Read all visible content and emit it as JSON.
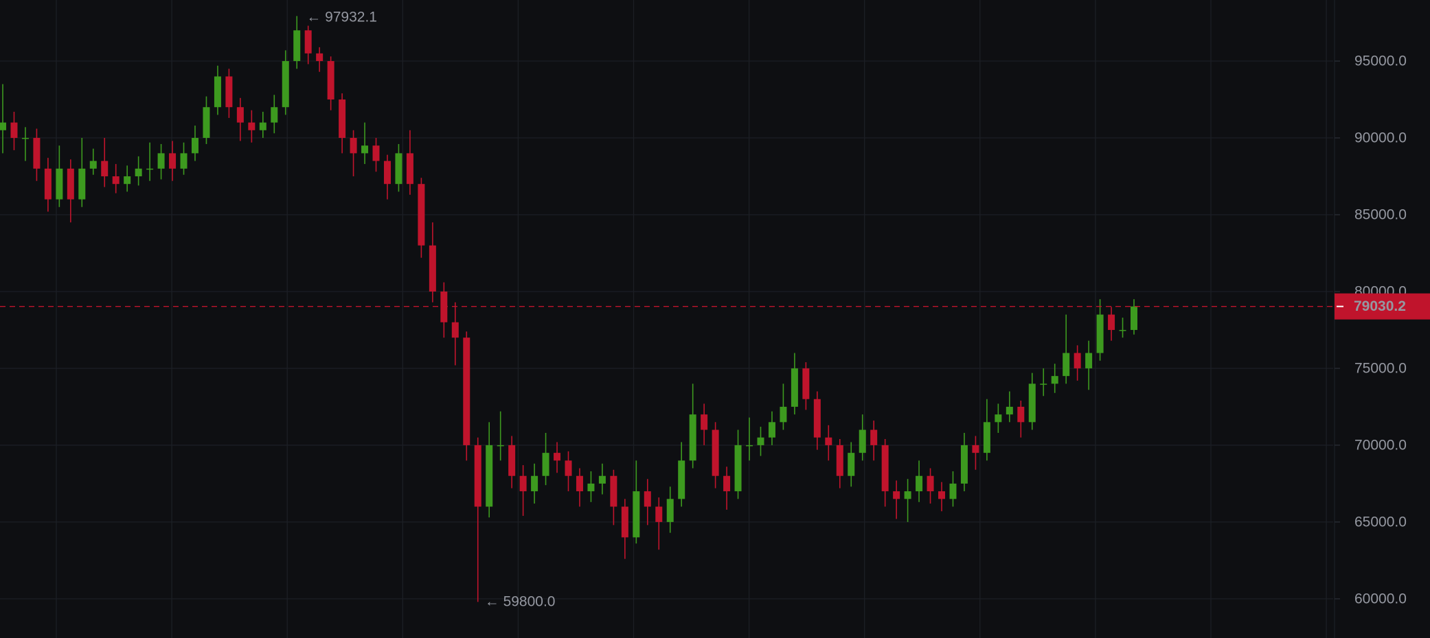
{
  "chart_data": {
    "type": "candlestick",
    "up_color": "#3d9a1f",
    "down_color": "#c0142c",
    "grid": true,
    "ylim": [
      57450,
      98975
    ],
    "yticks": [
      {
        "value": 60000,
        "label": "60000.0"
      },
      {
        "value": 65000,
        "label": "65000.0"
      },
      {
        "value": 70000,
        "label": "70000.0"
      },
      {
        "value": 75000,
        "label": "75000.0"
      },
      {
        "value": 80000,
        "label": "80000.0"
      },
      {
        "value": 85000,
        "label": "85000.0"
      },
      {
        "value": 90000,
        "label": "90000.0"
      },
      {
        "value": 95000,
        "label": "95000.0"
      }
    ],
    "high_marker": 97932.1,
    "low_marker": {
      "value": 59800,
      "label": "59800.0"
    },
    "last_price": 79030.2,
    "open": [
      90500,
      91000,
      90000,
      90000,
      88000,
      86000,
      88000,
      86000,
      88000,
      88500,
      87500,
      87000,
      87500,
      88000,
      88000,
      89000,
      88000,
      89000,
      90000,
      92000,
      94000,
      92000,
      91000,
      90500,
      91000,
      92000,
      95000,
      97000,
      95500,
      95000,
      92500,
      90000,
      89000,
      89500,
      88500,
      87000,
      89000,
      87000,
      83000,
      80000,
      78000,
      77000,
      70000,
      66000,
      70000,
      70000,
      68000,
      67000,
      68000,
      69500,
      69000,
      68000,
      67000,
      67500,
      68000,
      66000,
      64000,
      67000,
      66000,
      65000,
      66500,
      69000,
      72000,
      71000,
      68000,
      67000,
      70000,
      70000,
      70500,
      71500,
      72500,
      75000,
      73000,
      70500,
      70000,
      68000,
      69500,
      71000,
      70000,
      67000,
      66500,
      67000,
      68000,
      67000,
      66500,
      67500,
      70000,
      69500,
      71500,
      72000,
      72500,
      71500,
      74000,
      74000,
      74500,
      76000,
      75000,
      76000,
      78500,
      77500,
      77500
    ],
    "high": [
      93500,
      91700,
      90700,
      90600,
      88700,
      89500,
      88600,
      90000,
      89300,
      90000,
      88300,
      88200,
      88800,
      89700,
      89600,
      89800,
      89700,
      90800,
      92700,
      94700,
      94500,
      92600,
      91800,
      91700,
      92800,
      95700,
      97932.1,
      97300,
      95900,
      95300,
      92900,
      90500,
      91000,
      90000,
      88900,
      89600,
      90500,
      87400,
      84500,
      80600,
      79300,
      77400,
      70500,
      71500,
      72200,
      70600,
      68700,
      68800,
      70800,
      70200,
      69600,
      68500,
      68300,
      68800,
      68400,
      66500,
      69000,
      67800,
      66600,
      67300,
      70200,
      74000,
      72700,
      71500,
      68600,
      71000,
      71800,
      71200,
      72200,
      74000,
      76000,
      75400,
      73500,
      71300,
      70400,
      70200,
      72000,
      71600,
      70400,
      67700,
      67800,
      69000,
      68500,
      67600,
      68300,
      70800,
      70600,
      73000,
      72700,
      73500,
      72900,
      74700,
      75000,
      75300,
      78500,
      76500,
      76800,
      79500,
      79000,
      78300,
      79500
    ],
    "low": [
      89000,
      89200,
      88500,
      87200,
      85200,
      85500,
      84500,
      85500,
      87600,
      86800,
      86400,
      86500,
      86900,
      87200,
      87300,
      87200,
      87600,
      88500,
      89600,
      91500,
      91300,
      89800,
      89700,
      90000,
      90300,
      91500,
      94500,
      94800,
      94300,
      91800,
      89000,
      87500,
      88300,
      87800,
      86000,
      86500,
      86300,
      82200,
      79300,
      77000,
      75200,
      69000,
      59800,
      65300,
      69000,
      67200,
      65400,
      66200,
      67400,
      68200,
      67000,
      66000,
      66300,
      66800,
      64800,
      62600,
      63600,
      64800,
      63200,
      64300,
      66000,
      68500,
      70000,
      67200,
      65800,
      66500,
      69000,
      69300,
      70000,
      71000,
      72000,
      72300,
      69700,
      69000,
      67200,
      67300,
      69000,
      69000,
      66000,
      65200,
      65000,
      66300,
      66200,
      65700,
      66000,
      67000,
      68400,
      69000,
      70800,
      71500,
      70500,
      71000,
      73200,
      73400,
      74000,
      74200,
      73600,
      75500,
      76800,
      77000,
      77200
    ],
    "close": [
      91000,
      90000,
      90000,
      88000,
      86000,
      88000,
      86000,
      88000,
      88500,
      87500,
      87000,
      87500,
      88000,
      88000,
      89000,
      88000,
      89000,
      90000,
      92000,
      94000,
      92000,
      91000,
      90500,
      91000,
      92000,
      95000,
      97000,
      95500,
      95000,
      92500,
      90000,
      89000,
      89500,
      88500,
      87000,
      89000,
      87000,
      83000,
      80000,
      78000,
      77000,
      70000,
      66000,
      70000,
      70000,
      68000,
      67000,
      68000,
      69500,
      69000,
      68000,
      67000,
      67500,
      68000,
      66000,
      64000,
      67000,
      66000,
      65000,
      66500,
      69000,
      72000,
      71000,
      68000,
      67000,
      70000,
      70000,
      70500,
      71500,
      72500,
      75000,
      73000,
      70500,
      70000,
      68000,
      69500,
      71000,
      70000,
      67000,
      66500,
      67000,
      68000,
      67000,
      66500,
      67500,
      70000,
      69500,
      71500,
      72000,
      72500,
      71500,
      74000,
      74000,
      74500,
      76000,
      75000,
      76000,
      78500,
      77500,
      77500,
      79030.2
    ]
  }
}
